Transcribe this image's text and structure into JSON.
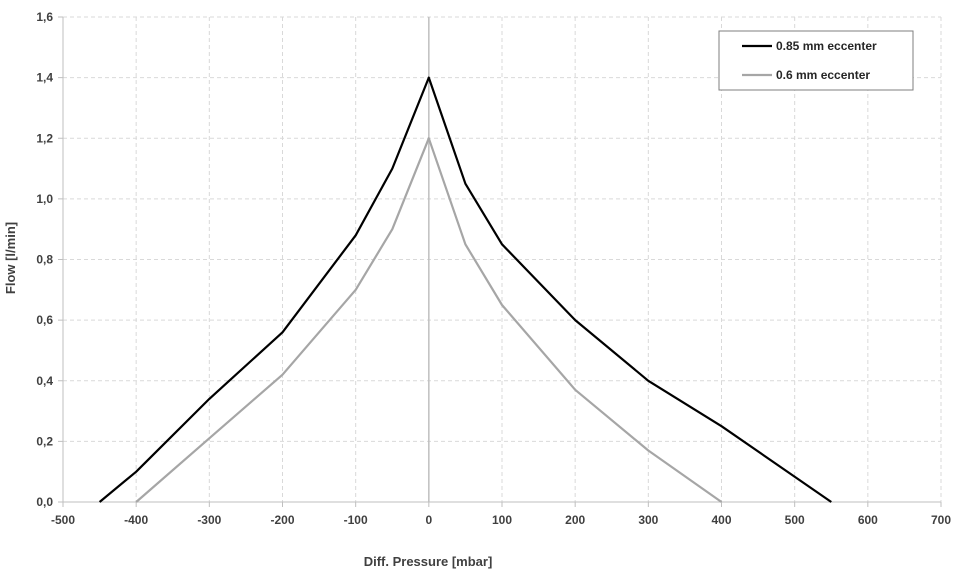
{
  "chart_data": {
    "type": "line",
    "title": "",
    "xlabel": "Diff. Pressure [mbar]",
    "ylabel": "Flow [l/min]",
    "xlim": [
      -500,
      700
    ],
    "ylim": [
      0,
      1.6
    ],
    "x_ticks": [
      "-500",
      "-400",
      "-300",
      "-200",
      "-100",
      "0",
      "100",
      "200",
      "300",
      "400",
      "500",
      "600",
      "700"
    ],
    "y_ticks": [
      "0,0",
      "0,2",
      "0,4",
      "0,6",
      "0,8",
      "1,0",
      "1,2",
      "1,4",
      "1,6"
    ],
    "grid": true,
    "legend_position": "top-right",
    "series": [
      {
        "name": "0.85 mm eccenter",
        "color": "#000000",
        "points": [
          [
            -450,
            0.0
          ],
          [
            -400,
            0.1
          ],
          [
            -300,
            0.34
          ],
          [
            -200,
            0.56
          ],
          [
            -100,
            0.88
          ],
          [
            -50,
            1.1
          ],
          [
            0,
            1.4
          ],
          [
            50,
            1.05
          ],
          [
            100,
            0.85
          ],
          [
            200,
            0.6
          ],
          [
            300,
            0.4
          ],
          [
            400,
            0.25
          ],
          [
            550,
            0.0
          ]
        ]
      },
      {
        "name": "0.6 mm eccenter",
        "color": "#a6a6a6",
        "points": [
          [
            -400,
            0.0
          ],
          [
            -300,
            0.21
          ],
          [
            -200,
            0.42
          ],
          [
            -100,
            0.7
          ],
          [
            -50,
            0.9
          ],
          [
            0,
            1.2
          ],
          [
            50,
            0.85
          ],
          [
            100,
            0.65
          ],
          [
            200,
            0.37
          ],
          [
            300,
            0.17
          ],
          [
            400,
            0.0
          ]
        ]
      }
    ]
  }
}
